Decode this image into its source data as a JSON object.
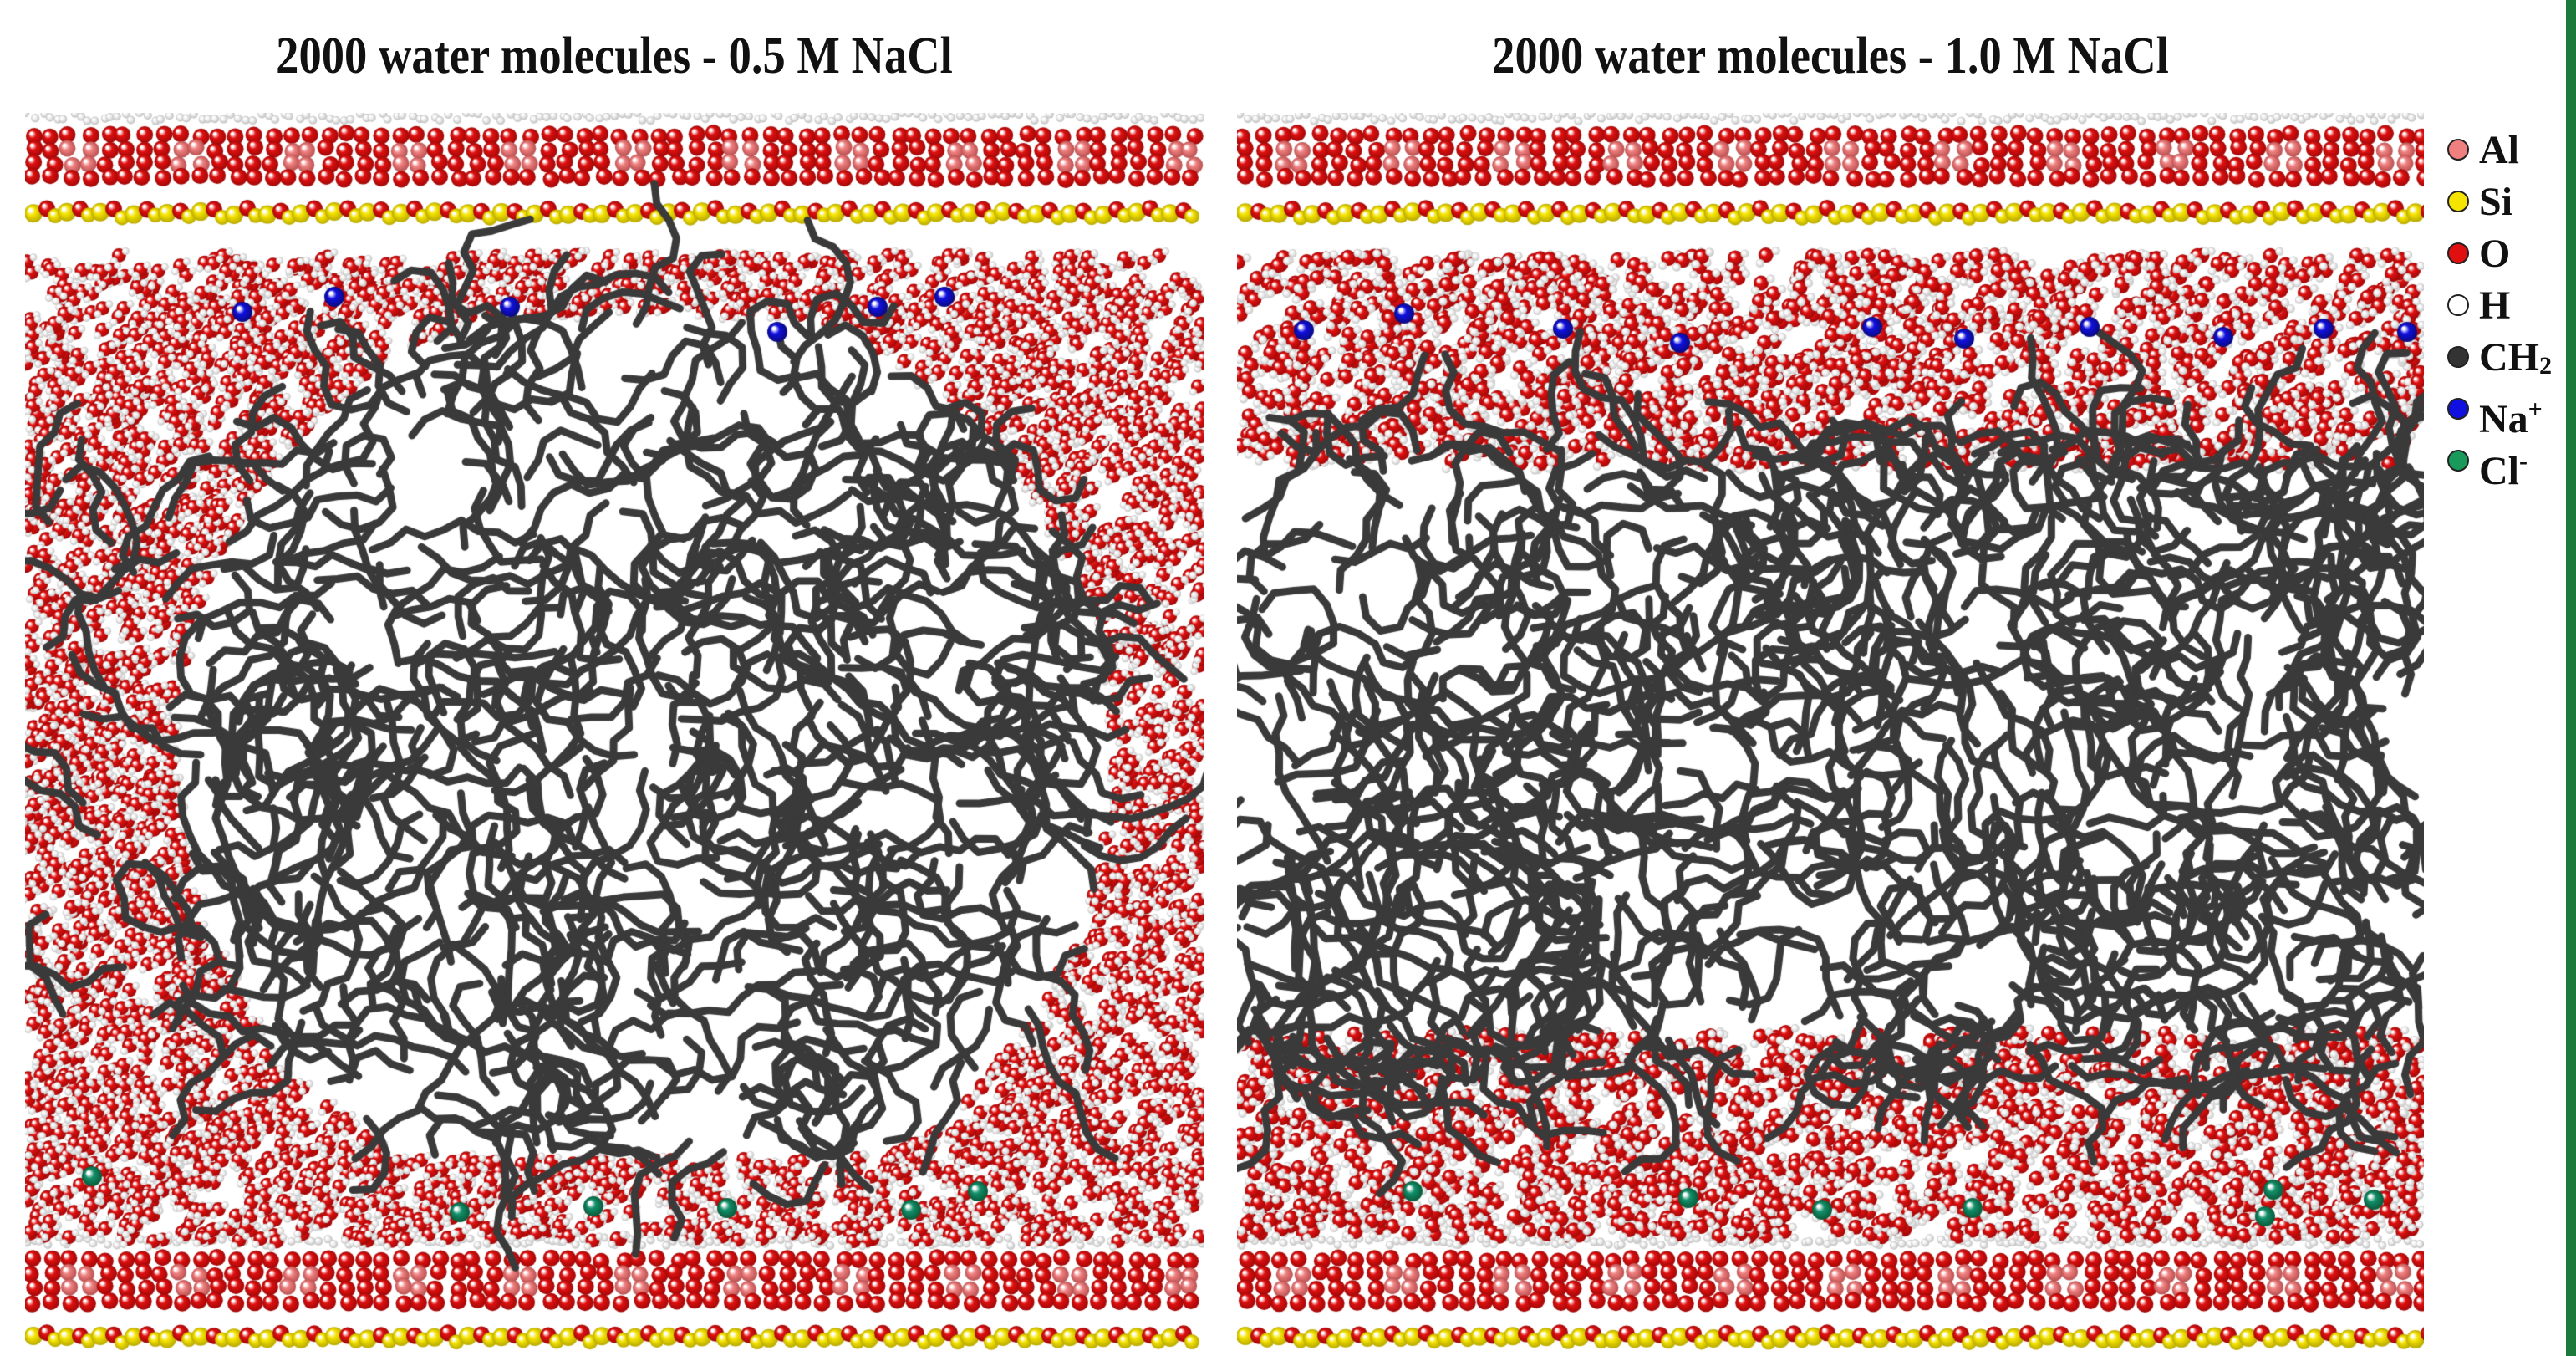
{
  "panels": [
    {
      "title": "2000 water molecules - 0.5 M NaCl"
    },
    {
      "title": "2000 water molecules - 1.0 M NaCl"
    }
  ],
  "legend": [
    {
      "symbol": "Al",
      "sub": "",
      "sup": "",
      "color": "#f08080"
    },
    {
      "symbol": "Si",
      "sub": "",
      "sup": "",
      "color": "#f5e400"
    },
    {
      "symbol": "O",
      "sub": "",
      "sup": "",
      "color": "#e01010"
    },
    {
      "symbol": "H",
      "sub": "",
      "sup": "",
      "color": "#ffffff"
    },
    {
      "symbol": "CH",
      "sub": "2",
      "sup": "",
      "color": "#333333"
    },
    {
      "symbol": "Na",
      "sub": "",
      "sup": "+",
      "color": "#1010e0"
    },
    {
      "symbol": "Cl",
      "sub": "",
      "sup": "-",
      "color": "#1a9a5a"
    }
  ],
  "colors": {
    "al": "#f08080",
    "si": "#f5e400",
    "o": "#e01010",
    "o_dark": "#a00808",
    "h": "#ececec",
    "ch2": "#3a3a3a",
    "na": "#1010e0",
    "cl": "#12906a"
  }
}
